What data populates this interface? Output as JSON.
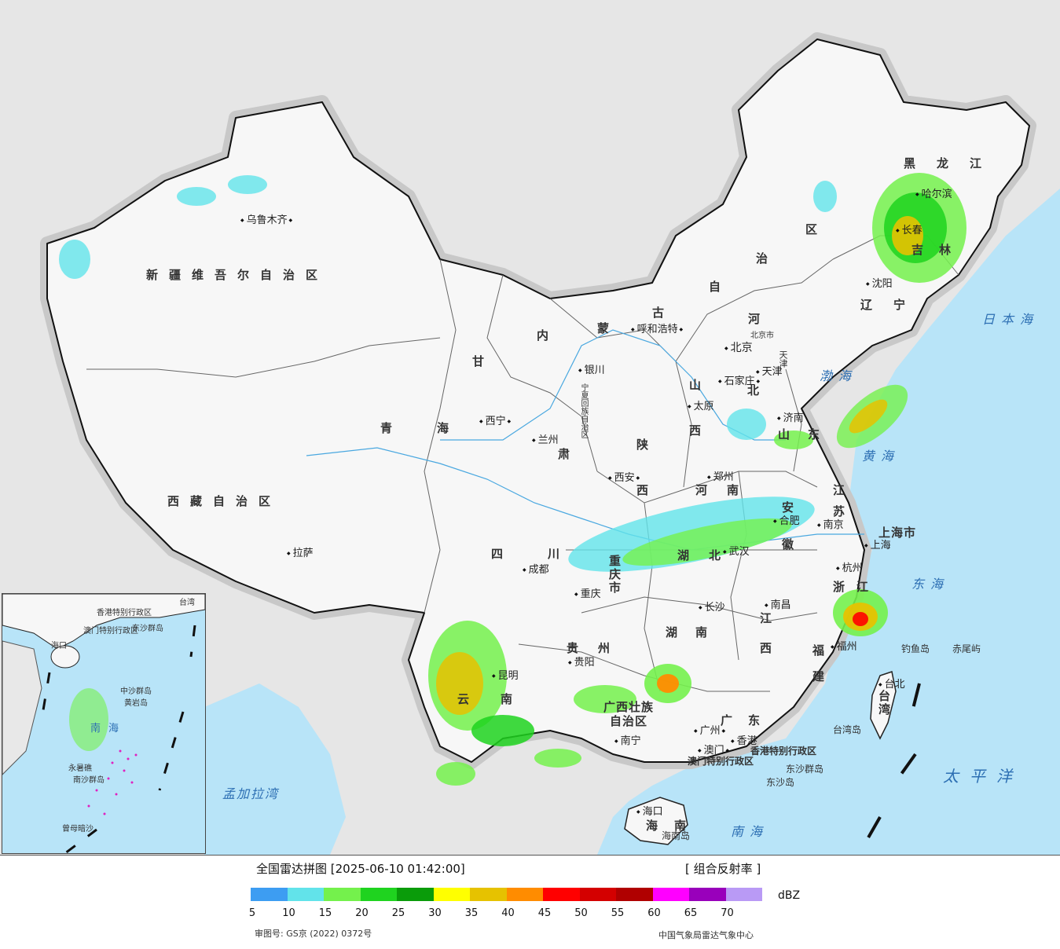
{
  "map": {
    "provinces": [
      "新疆维吾尔自治区",
      "西藏自治区",
      "青",
      "海",
      "甘",
      "肃",
      "内",
      "蒙",
      "古",
      "自",
      "治",
      "区",
      "黑",
      "龙",
      "江",
      "吉",
      "林",
      "辽",
      "宁",
      "河",
      "北",
      "山",
      "西",
      "陕",
      "西",
      "河",
      "南",
      "山",
      "东",
      "江",
      "苏",
      "安",
      "徽",
      "湖",
      "北",
      "四",
      "川",
      "重庆市",
      "湖",
      "南",
      "江",
      "西",
      "浙",
      "江",
      "福",
      "建",
      "贵",
      "州",
      "云",
      "南",
      "广西壮族自治区",
      "广",
      "东",
      "海",
      "南",
      "上海市",
      "台湾",
      "宁夏回族自治区",
      "北京市",
      "天津"
    ],
    "cities": [
      "乌鲁木齐",
      "拉萨",
      "西宁",
      "兰州",
      "银川",
      "呼和浩特",
      "北京",
      "天津",
      "石家庄",
      "太原",
      "济南",
      "西安",
      "郑州",
      "合肥",
      "南京",
      "上海",
      "杭州",
      "武汉",
      "成都",
      "重庆",
      "长沙",
      "南昌",
      "福州",
      "贵阳",
      "昆明",
      "南宁",
      "广州",
      "香港",
      "澳门",
      "海口",
      "台北",
      "沈阳",
      "长春",
      "哈尔滨"
    ],
    "seas": [
      "日本海",
      "渤海",
      "黄海",
      "东海",
      "太平洋",
      "南海",
      "孟加拉湾"
    ],
    "islands": [
      "钓鱼岛",
      "赤尾屿",
      "台湾岛",
      "海南岛",
      "东沙群岛",
      "东沙岛",
      "香港特别行政区",
      "澳门特别行政区"
    ],
    "inset_labels": [
      "南海",
      "中沙群岛",
      "黄岩岛",
      "永暑礁",
      "南沙群岛",
      "曾母暗沙",
      "海口",
      "香港特别行政区",
      "澳门特别行政区",
      "东沙群岛",
      "台湾"
    ]
  },
  "legend": {
    "title": "全国雷达拼图 [2025-06-10 01:42:00]",
    "product": "[ 组合反射率 ]",
    "unit": "dBZ",
    "colors": [
      "#3d9df2",
      "#62e3ea",
      "#74f14c",
      "#1fd31f",
      "#0a9c0a",
      "#ffff00",
      "#e6c200",
      "#ff8c00",
      "#ff0000",
      "#d40000",
      "#b00000",
      "#ff00ff",
      "#9900bb",
      "#b99af5"
    ],
    "ticks": [
      "5",
      "10",
      "15",
      "20",
      "25",
      "30",
      "35",
      "40",
      "45",
      "50",
      "55",
      "60",
      "65",
      "70"
    ],
    "approval": "审图号: GS京 (2022) 0372号",
    "agency": "中国气象局雷达气象中心"
  }
}
